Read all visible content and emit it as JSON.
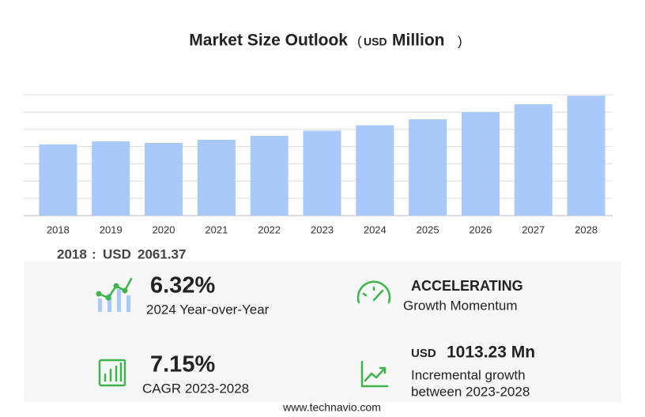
{
  "chart_data": {
    "type": "bar",
    "title": "Market Size Outlook",
    "subtitle_parts": [
      "(",
      "USD",
      "Million",
      ")"
    ],
    "categories": [
      "2018",
      "2019",
      "2020",
      "2021",
      "2022",
      "2023",
      "2024",
      "2025",
      "2026",
      "2027",
      "2028"
    ],
    "values": [
      2061.37,
      2150,
      2105,
      2196,
      2311,
      2460,
      2615,
      2791,
      2997,
      3226,
      3473
    ],
    "color": "#a9c9fb",
    "ylim": [
      0,
      3500
    ],
    "yticks": [
      0,
      500,
      1000,
      1500,
      2000,
      2500,
      3000,
      3500
    ],
    "grid": true
  },
  "highlight": {
    "sep": ":",
    "currency": "USD"
  },
  "stats": {
    "yoy": {
      "value": "6.32%",
      "label": "2024 Year-over-Year"
    },
    "momentum": {
      "value": "ACCELERATING",
      "label": "Growth Momentum"
    },
    "cagr": {
      "value": "7.15%",
      "label": "CAGR 2023-2028"
    },
    "incremental": {
      "currency": "USD",
      "value": "1013.23 Mn",
      "lines": [
        "Incremental growth",
        "between 2023-2028"
      ]
    }
  },
  "footer": "www.technavio.com"
}
